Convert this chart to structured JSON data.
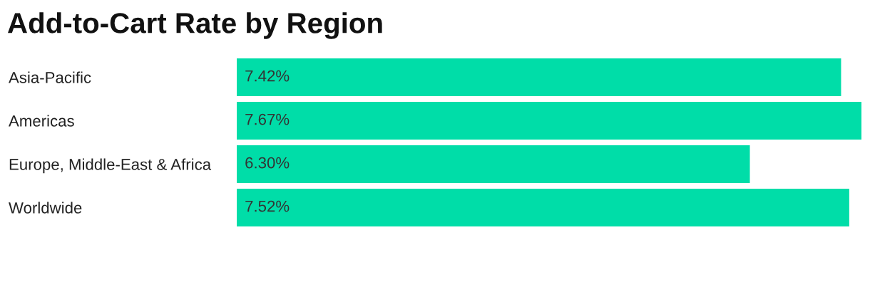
{
  "chart_data": {
    "type": "bar",
    "orientation": "horizontal",
    "title": "Add-to-Cart Rate by Region",
    "categories": [
      "Asia-Pacific",
      "Americas",
      "Europe, Middle-East & Africa",
      "Worldwide"
    ],
    "values": [
      7.42,
      7.67,
      6.3,
      7.52
    ],
    "value_labels": [
      "7.42%",
      "7.67%",
      "6.30%",
      "7.52%"
    ],
    "color": "#00dda8",
    "grid": false,
    "legend": false
  }
}
